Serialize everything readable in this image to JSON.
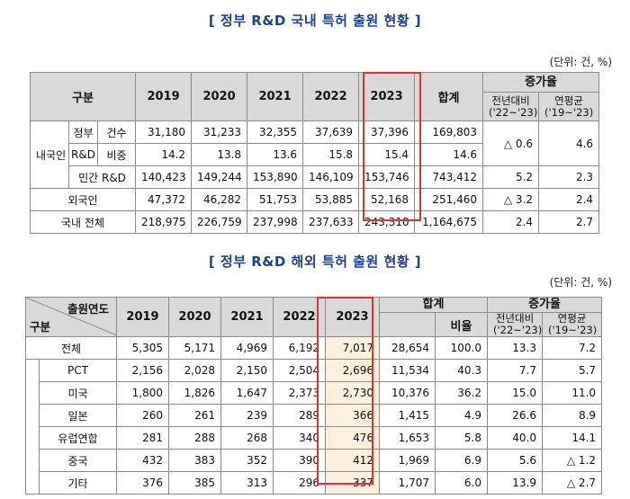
{
  "domestic": {
    "title": "[ 정부 R&D 국내 특허 출원 현황 ]",
    "unit": "(단위: 건, %)",
    "headers": {
      "category": "구분",
      "years": [
        "2019",
        "2020",
        "2021",
        "2022",
        "2023"
      ],
      "total": "합계",
      "growth": "증가율",
      "yoy": "전년대비",
      "yoy_period": "('22~'23)",
      "cagr": "연평균",
      "cagr_period": "('19~'23)"
    },
    "group_label": "내국인",
    "rows": [
      {
        "l1": "정부",
        "l2": "건수",
        "values": [
          "31,180",
          "31,233",
          "32,355",
          "37,639",
          "37,396"
        ],
        "total": "169,803",
        "yoy": "△ 0.6",
        "cagr": "4.6"
      },
      {
        "l1": "R&D",
        "l2": "비중",
        "values": [
          "14.2",
          "13.8",
          "13.6",
          "15.8",
          "15.4"
        ],
        "total": "14.6"
      },
      {
        "label": "민간 R&D",
        "values": [
          "140,423",
          "149,244",
          "153,890",
          "146,109",
          "153,746"
        ],
        "total": "743,412",
        "yoy": "5.2",
        "cagr": "2.3"
      },
      {
        "label": "외국인",
        "values": [
          "47,372",
          "46,282",
          "51,753",
          "53,885",
          "52,168"
        ],
        "total": "251,460",
        "yoy": "△ 3.2",
        "cagr": "2.4"
      },
      {
        "label": "국내 전체",
        "values": [
          "218,975",
          "226,759",
          "237,998",
          "237,633",
          "243,310"
        ],
        "total": "1,164,675",
        "yoy": "2.4",
        "cagr": "2.7"
      }
    ]
  },
  "overseas": {
    "title": "[ 정부 R&D 해외 특허 출원 현황 ]",
    "unit": "(단위: 건, %)",
    "headers": {
      "corner_top": "출원연도",
      "corner_bottom": "구분",
      "years": [
        "2019",
        "2020",
        "2021",
        "2022",
        "2023"
      ],
      "total": "합계",
      "ratio": "비율",
      "growth": "증가율",
      "yoy": "전년대비",
      "yoy_period": "('22~'23)",
      "cagr": "연평균",
      "cagr_period": "('19~'23)"
    },
    "rows": [
      {
        "label": "전체",
        "values": [
          "5,305",
          "5,171",
          "4,969",
          "6,192",
          "7,017"
        ],
        "total": "28,654",
        "ratio": "100.0",
        "yoy": "13.3",
        "cagr": "7.2"
      },
      {
        "label": "PCT",
        "values": [
          "2,156",
          "2,028",
          "2,150",
          "2,504",
          "2,696"
        ],
        "total": "11,534",
        "ratio": "40.3",
        "yoy": "7.7",
        "cagr": "5.7"
      },
      {
        "label": "미국",
        "values": [
          "1,800",
          "1,826",
          "1,647",
          "2,373",
          "2,730"
        ],
        "total": "10,376",
        "ratio": "36.2",
        "yoy": "15.0",
        "cagr": "11.0"
      },
      {
        "label": "일본",
        "values": [
          "260",
          "261",
          "239",
          "289",
          "366"
        ],
        "total": "1,415",
        "ratio": "4.9",
        "yoy": "26.6",
        "cagr": "8.9"
      },
      {
        "label": "유럽연합",
        "values": [
          "281",
          "288",
          "268",
          "340",
          "476"
        ],
        "total": "1,653",
        "ratio": "5.8",
        "yoy": "40.0",
        "cagr": "14.1"
      },
      {
        "label": "중국",
        "values": [
          "432",
          "383",
          "352",
          "390",
          "412"
        ],
        "total": "1,969",
        "ratio": "6.9",
        "yoy": "5.6",
        "cagr": "△ 1.2"
      },
      {
        "label": "기타",
        "values": [
          "376",
          "385",
          "313",
          "296",
          "337"
        ],
        "total": "1,707",
        "ratio": "6.0",
        "yoy": "13.9",
        "cagr": "△ 2.7"
      }
    ]
  }
}
